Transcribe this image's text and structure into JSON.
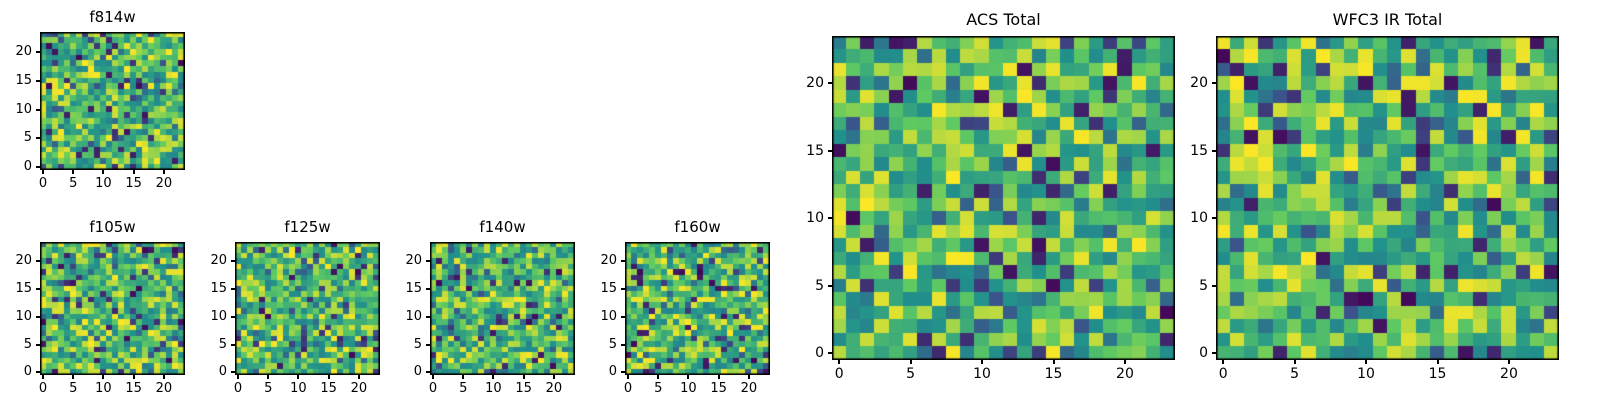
{
  "figure": {
    "background": "#ffffff",
    "text_color": "#000000",
    "frame_color": "#000000",
    "colormap_name": "viridis",
    "colormap_stops": [
      [
        0.0,
        "#440154"
      ],
      [
        0.25,
        "#3b528b"
      ],
      [
        0.5,
        "#21918c"
      ],
      [
        0.75,
        "#5ec962"
      ],
      [
        1.0,
        "#fde725"
      ]
    ]
  },
  "chart_data": [
    {
      "type": "heatmap",
      "panel": "f814w",
      "title": "f814w",
      "grid_size": 24,
      "xlim": [
        -0.5,
        23.5
      ],
      "ylim": [
        -0.5,
        23.5
      ],
      "xticks": [
        0,
        5,
        10,
        15,
        20
      ],
      "yticks": [
        0,
        5,
        10,
        15,
        20
      ],
      "colormap": "viridis",
      "value_range": [
        0,
        1
      ],
      "seed": 814
    },
    {
      "type": "heatmap",
      "panel": "f105w",
      "title": "f105w",
      "grid_size": 24,
      "xlim": [
        -0.5,
        23.5
      ],
      "ylim": [
        -0.5,
        23.5
      ],
      "xticks": [
        0,
        5,
        10,
        15,
        20
      ],
      "yticks": [
        0,
        5,
        10,
        15,
        20
      ],
      "colormap": "viridis",
      "value_range": [
        0,
        1
      ],
      "seed": 105
    },
    {
      "type": "heatmap",
      "panel": "f125w",
      "title": "f125w",
      "grid_size": 24,
      "xlim": [
        -0.5,
        23.5
      ],
      "ylim": [
        -0.5,
        23.5
      ],
      "xticks": [
        0,
        5,
        10,
        15,
        20
      ],
      "yticks": [
        0,
        5,
        10,
        15,
        20
      ],
      "colormap": "viridis",
      "value_range": [
        0,
        1
      ],
      "seed": 125
    },
    {
      "type": "heatmap",
      "panel": "f140w",
      "title": "f140w",
      "grid_size": 24,
      "xlim": [
        -0.5,
        23.5
      ],
      "ylim": [
        -0.5,
        23.5
      ],
      "xticks": [
        0,
        5,
        10,
        15,
        20
      ],
      "yticks": [
        0,
        5,
        10,
        15,
        20
      ],
      "colormap": "viridis",
      "value_range": [
        0,
        1
      ],
      "seed": 140
    },
    {
      "type": "heatmap",
      "panel": "f160w",
      "title": "f160w",
      "grid_size": 24,
      "xlim": [
        -0.5,
        23.5
      ],
      "ylim": [
        -0.5,
        23.5
      ],
      "xticks": [
        0,
        5,
        10,
        15,
        20
      ],
      "yticks": [
        0,
        5,
        10,
        15,
        20
      ],
      "colormap": "viridis",
      "value_range": [
        0,
        1
      ],
      "seed": 160
    },
    {
      "type": "heatmap",
      "panel": "acs-total",
      "title": "ACS Total",
      "grid_size": 24,
      "xlim": [
        -0.5,
        23.5
      ],
      "ylim": [
        -0.5,
        23.5
      ],
      "xticks": [
        0,
        5,
        10,
        15,
        20
      ],
      "yticks": [
        0,
        5,
        10,
        15,
        20
      ],
      "colormap": "viridis",
      "value_range": [
        0,
        1
      ],
      "seed": 2001
    },
    {
      "type": "heatmap",
      "panel": "wfc3-ir-total",
      "title": "WFC3 IR Total",
      "grid_size": 24,
      "xlim": [
        -0.5,
        23.5
      ],
      "ylim": [
        -0.5,
        23.5
      ],
      "xticks": [
        0,
        5,
        10,
        15,
        20
      ],
      "yticks": [
        0,
        5,
        10,
        15,
        20
      ],
      "colormap": "viridis",
      "value_range": [
        0,
        1
      ],
      "seed": 2002
    }
  ]
}
